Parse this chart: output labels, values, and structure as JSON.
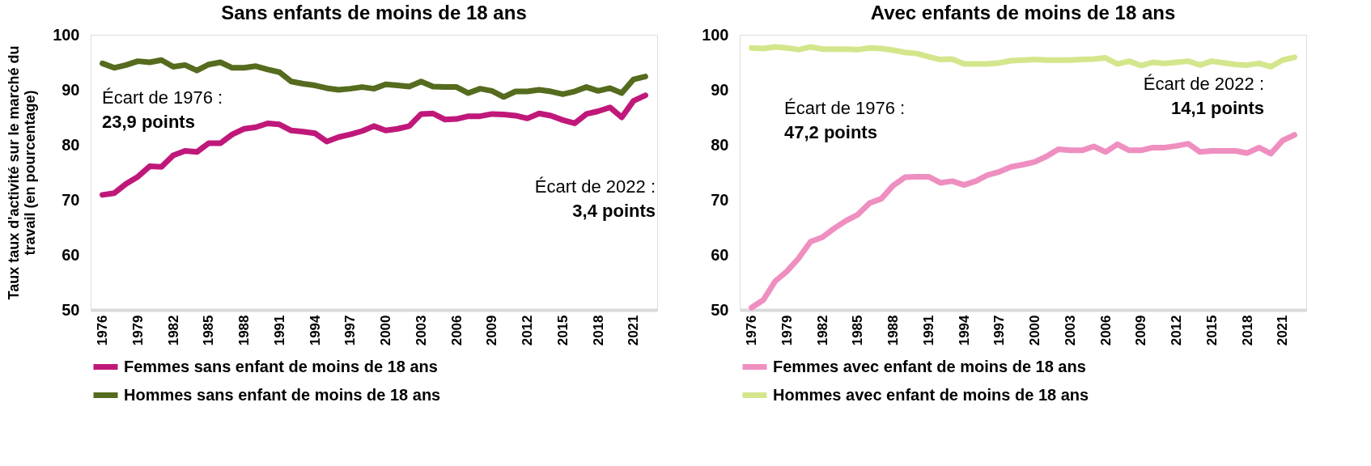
{
  "chart_data": [
    {
      "type": "line",
      "title": "Sans enfants de moins de 18 ans",
      "ylabel": "Taux taux d'activité sur le marché du travail  (en pourcentage)",
      "x": [
        1976,
        1977,
        1978,
        1979,
        1980,
        1981,
        1982,
        1983,
        1984,
        1985,
        1986,
        1987,
        1988,
        1989,
        1990,
        1991,
        1992,
        1993,
        1994,
        1995,
        1996,
        1997,
        1998,
        1999,
        2000,
        2001,
        2002,
        2003,
        2004,
        2005,
        2006,
        2007,
        2008,
        2009,
        2010,
        2011,
        2012,
        2013,
        2014,
        2015,
        2016,
        2017,
        2018,
        2019,
        2020,
        2021,
        2022
      ],
      "series": [
        {
          "name": "Femmes sans enfant de moins de 18 ans",
          "color": "#c0187a",
          "values": [
            70.9,
            71.2,
            72.9,
            74.2,
            76.1,
            76.0,
            78.1,
            78.9,
            78.7,
            80.3,
            80.3,
            81.9,
            82.9,
            83.2,
            83.9,
            83.7,
            82.6,
            82.4,
            82.1,
            80.6,
            81.4,
            81.9,
            82.5,
            83.4,
            82.6,
            82.9,
            83.4,
            85.6,
            85.7,
            84.6,
            84.7,
            85.2,
            85.2,
            85.6,
            85.5,
            85.3,
            84.8,
            85.7,
            85.3,
            84.5,
            83.9,
            85.6,
            86.1,
            86.8,
            85.0,
            88.0,
            89.0
          ]
        },
        {
          "name": "Hommes sans enfant de moins de 18 ans",
          "color": "#556b1e",
          "values": [
            94.8,
            94.0,
            94.5,
            95.2,
            95.0,
            95.4,
            94.2,
            94.5,
            93.5,
            94.6,
            95.0,
            94.0,
            94.0,
            94.3,
            93.7,
            93.2,
            91.5,
            91.1,
            90.8,
            90.3,
            90.0,
            90.2,
            90.5,
            90.2,
            91.0,
            90.8,
            90.6,
            91.5,
            90.6,
            90.5,
            90.5,
            89.4,
            90.2,
            89.8,
            88.7,
            89.7,
            89.7,
            90.0,
            89.7,
            89.2,
            89.7,
            90.5,
            89.8,
            90.3,
            89.4,
            91.9,
            92.4
          ]
        }
      ],
      "xlim": [
        1975,
        2023
      ],
      "xticks": [
        1976,
        1979,
        1982,
        1985,
        1988,
        1991,
        1994,
        1997,
        2000,
        2003,
        2006,
        2009,
        2012,
        2015,
        2018,
        2021
      ],
      "ylim": [
        50,
        100
      ],
      "yticks": [
        50,
        60,
        70,
        80,
        90,
        100
      ],
      "grid": false,
      "legend": "bottom",
      "annotations": [
        "Écart de 1976 :",
        "23,9 points",
        "Écart de 2022 :",
        "3,4 points"
      ]
    },
    {
      "type": "line",
      "title": "Avec enfants de moins de 18 ans",
      "x": [
        1976,
        1977,
        1978,
        1979,
        1980,
        1981,
        1982,
        1983,
        1984,
        1985,
        1986,
        1987,
        1988,
        1989,
        1990,
        1991,
        1992,
        1993,
        1994,
        1995,
        1996,
        1997,
        1998,
        1999,
        2000,
        2001,
        2002,
        2003,
        2004,
        2005,
        2006,
        2007,
        2008,
        2009,
        2010,
        2011,
        2012,
        2013,
        2014,
        2015,
        2016,
        2017,
        2018,
        2019,
        2020,
        2021,
        2022
      ],
      "series": [
        {
          "name": "Femmes avec enfant de moins de 18 ans",
          "color": "#ef8fc0",
          "values": [
            50.4,
            51.8,
            55.2,
            57.0,
            59.4,
            62.4,
            63.2,
            64.8,
            66.2,
            67.3,
            69.4,
            70.2,
            72.6,
            74.1,
            74.2,
            74.2,
            73.1,
            73.4,
            72.7,
            73.4,
            74.5,
            75.1,
            76.0,
            76.4,
            76.9,
            77.9,
            79.2,
            79.0,
            79.0,
            79.7,
            78.7,
            80.1,
            79.0,
            79.0,
            79.5,
            79.5,
            79.8,
            80.2,
            78.7,
            78.9,
            78.9,
            78.9,
            78.5,
            79.5,
            78.4,
            80.8,
            81.8
          ]
        },
        {
          "name": "Hommes avec enfant de moins de 18 ans",
          "color": "#d4e68c",
          "values": [
            97.6,
            97.5,
            97.8,
            97.6,
            97.3,
            97.8,
            97.4,
            97.4,
            97.4,
            97.3,
            97.6,
            97.5,
            97.2,
            96.8,
            96.6,
            96.0,
            95.5,
            95.6,
            94.7,
            94.7,
            94.7,
            94.9,
            95.3,
            95.4,
            95.5,
            95.4,
            95.4,
            95.4,
            95.5,
            95.6,
            95.8,
            94.7,
            95.2,
            94.4,
            95.0,
            94.8,
            95.0,
            95.2,
            94.5,
            95.2,
            94.9,
            94.6,
            94.5,
            94.8,
            94.2,
            95.4,
            95.9
          ]
        }
      ],
      "xlim": [
        1975,
        2023
      ],
      "xticks": [
        1976,
        1979,
        1982,
        1985,
        1988,
        1991,
        1994,
        1997,
        2000,
        2003,
        2006,
        2009,
        2012,
        2015,
        2018,
        2021
      ],
      "ylim": [
        50,
        100
      ],
      "yticks": [
        50,
        60,
        70,
        80,
        90,
        100
      ],
      "grid": false,
      "legend": "bottom",
      "annotations": [
        "Écart de 1976 :",
        "47,2 points",
        "Écart de 2022 :",
        "14,1 points"
      ]
    }
  ]
}
